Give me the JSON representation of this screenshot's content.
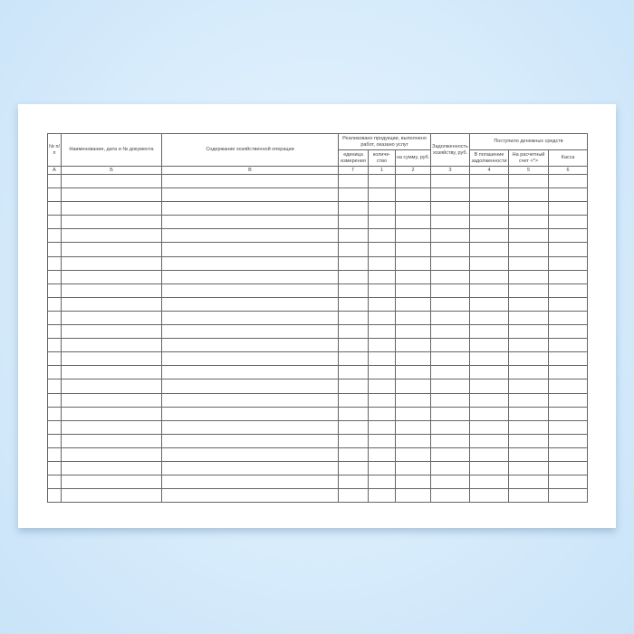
{
  "form": {
    "headers": {
      "num": "№ п/п",
      "doc": "Наименование, дата и № документа",
      "content": "Содержание хозяйственной операции",
      "sold": "Реализовано продукции, выполнено работ, оказано услуг",
      "unit": "единица измерения",
      "qty": "количе- ство",
      "sum": "на сумму, руб.",
      "debt": "Задолженность хозяйству, руб.",
      "received": "Поступило денежных средств",
      "repay": "В погашение задолженности",
      "account": "На расчетный счет <*>",
      "cash": "Касса"
    },
    "codes": [
      "А",
      "Б",
      "В",
      "Г",
      "1",
      "2",
      "3",
      "4",
      "5",
      "6"
    ],
    "empty_rows": 24
  }
}
